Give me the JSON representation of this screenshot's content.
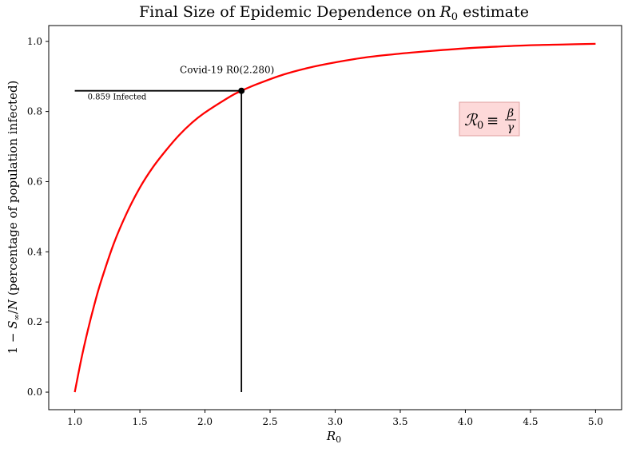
{
  "chart_data": {
    "type": "line",
    "title": "Final Size of Epidemic Dependence on",
    "title_symbol": "R",
    "title_subscript": "0",
    "title_suffix": " estimate",
    "xlabel_symbol": "R",
    "xlabel_subscript": "0",
    "ylabel_prefix": "1 − ",
    "ylabel_symbol": "S",
    "ylabel_subscript": "∞",
    "ylabel_mid": "/",
    "ylabel_var": "N",
    "ylabel_suffix": " (percentage of population infected)",
    "xlim": [
      0.8,
      5.2
    ],
    "ylim": [
      -0.05,
      1.045
    ],
    "x_ticks": [
      1.0,
      1.5,
      2.0,
      2.5,
      3.0,
      3.5,
      4.0,
      4.5,
      5.0
    ],
    "x_tick_labels": [
      "1.0",
      "1.5",
      "2.0",
      "2.5",
      "3.0",
      "3.5",
      "4.0",
      "4.5",
      "5.0"
    ],
    "y_ticks": [
      0.0,
      0.2,
      0.4,
      0.6,
      0.8,
      1.0
    ],
    "y_tick_labels": [
      "0.0",
      "0.2",
      "0.4",
      "0.6",
      "0.8",
      "1.0"
    ],
    "grid": false,
    "series": [
      {
        "color": "#ff0000",
        "x": [
          1.0,
          1.05,
          1.1,
          1.15,
          1.2,
          1.3,
          1.4,
          1.5,
          1.6,
          1.7,
          1.8,
          1.9,
          2.0,
          2.2,
          2.28,
          2.4,
          2.6,
          2.8,
          3.0,
          3.25,
          3.5,
          3.75,
          4.0,
          4.25,
          4.5,
          4.75,
          5.0
        ],
        "y": [
          0.0,
          0.094,
          0.176,
          0.249,
          0.314,
          0.424,
          0.511,
          0.583,
          0.641,
          0.689,
          0.732,
          0.768,
          0.797,
          0.844,
          0.859,
          0.878,
          0.905,
          0.925,
          0.94,
          0.955,
          0.965,
          0.973,
          0.98,
          0.985,
          0.989,
          0.991,
          0.993
        ]
      }
    ],
    "highlight": {
      "x": 2.28,
      "y": 0.859,
      "point_label": "Covid-19 R0(2.280)",
      "value_label": "0.859 Infected"
    },
    "formula": {
      "script": "ℛ",
      "sub": "0",
      "equiv": "≡",
      "numerator": "β",
      "denominator": "γ"
    },
    "colors": {
      "curve": "#ff0000",
      "marker": "#000000",
      "formula_bg": "#fdd9d9",
      "formula_border": "#e0a0a0"
    }
  }
}
